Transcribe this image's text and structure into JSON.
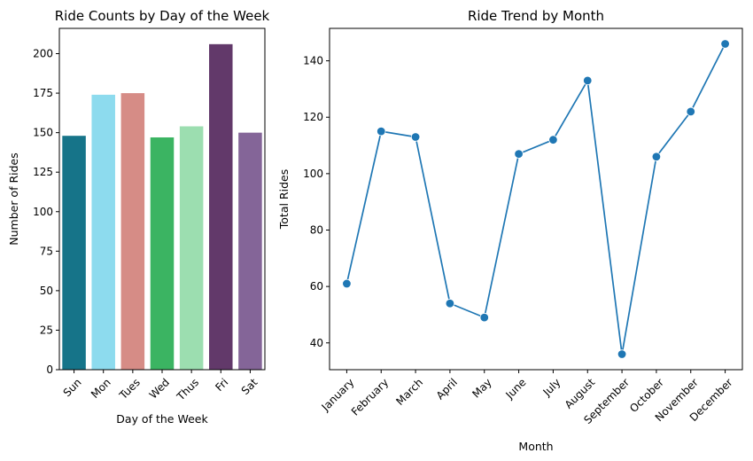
{
  "chart_data": [
    {
      "type": "bar",
      "title": "Ride Counts by Day of the Week",
      "xlabel": "Day of the Week",
      "ylabel": "Number of Rides",
      "categories": [
        "Sun",
        "Mon",
        "Tues",
        "Wed",
        "Thus",
        "Fri",
        "Sat"
      ],
      "values": [
        148,
        174,
        175,
        147,
        154,
        206,
        150
      ],
      "colors": [
        "#167489",
        "#8ddbee",
        "#d68c86",
        "#3bb462",
        "#9cdeb0",
        "#62396a",
        "#846598"
      ],
      "ylim": [
        0,
        216
      ],
      "yticks": [
        0,
        25,
        50,
        75,
        100,
        125,
        150,
        175,
        200
      ],
      "grid": false
    },
    {
      "type": "line",
      "title": "Ride Trend by Month",
      "xlabel": "Month",
      "ylabel": "Total Rides",
      "categories": [
        "January",
        "February",
        "March",
        "April",
        "May",
        "June",
        "July",
        "August",
        "September",
        "October",
        "November",
        "December"
      ],
      "values": [
        61,
        115,
        113,
        54,
        49,
        107,
        112,
        133,
        36,
        106,
        122,
        146
      ],
      "color": "#1f77b4",
      "ylim": [
        30.5,
        151.5
      ],
      "yticks": [
        40,
        60,
        80,
        100,
        120,
        140
      ],
      "grid": false
    }
  ]
}
